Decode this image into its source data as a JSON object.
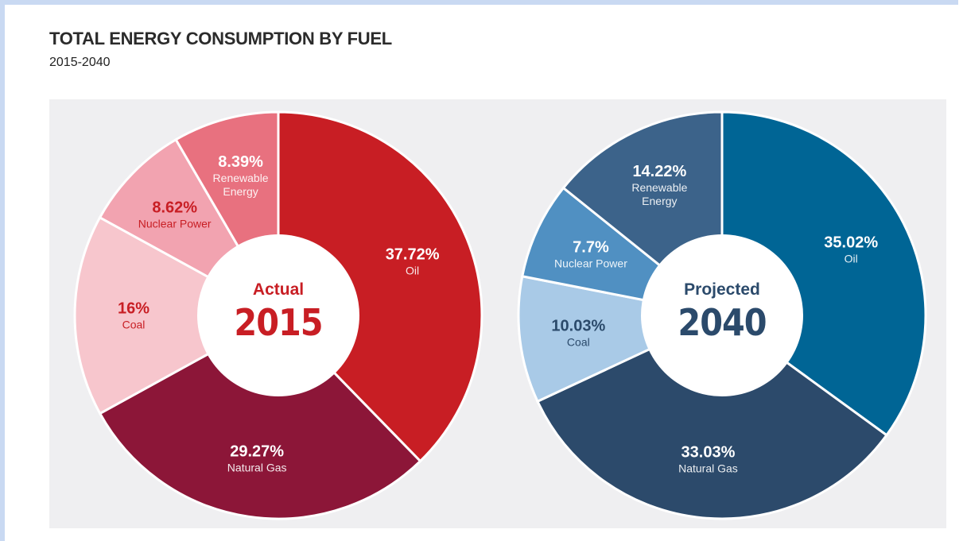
{
  "title": "TOTAL ENERGY CONSUMPTION BY FUEL",
  "subtitle": "2015-2040",
  "chart_data": [
    {
      "type": "donut",
      "center_label": "Actual",
      "center_value": "2015",
      "center_color": "#c81e24",
      "categories": [
        "Oil",
        "Natural Gas",
        "Coal",
        "Nuclear Power",
        "Renewable Energy"
      ],
      "values": [
        37.72,
        29.27,
        16,
        8.62,
        8.39
      ],
      "value_labels": [
        "37.72%",
        "29.27%",
        "16%",
        "8.62%",
        "8.39%"
      ],
      "colors": [
        "#c81e24",
        "#8c1638",
        "#f7c6cd",
        "#f2a3b0",
        "#e8717f"
      ]
    },
    {
      "type": "donut",
      "center_label": "Projected",
      "center_value": "2040",
      "center_color": "#2b4a6b",
      "categories": [
        "Oil",
        "Natural Gas",
        "Coal",
        "Nuclear Power",
        "Renewable Energy"
      ],
      "values": [
        35.02,
        33.03,
        10.03,
        7.7,
        14.22
      ],
      "value_labels": [
        "35.02%",
        "33.03%",
        "10.03%",
        "7.7%",
        "14.22%"
      ],
      "colors": [
        "#006595",
        "#2c4a6b",
        "#a9cae7",
        "#5090c2",
        "#3c638a"
      ]
    }
  ]
}
